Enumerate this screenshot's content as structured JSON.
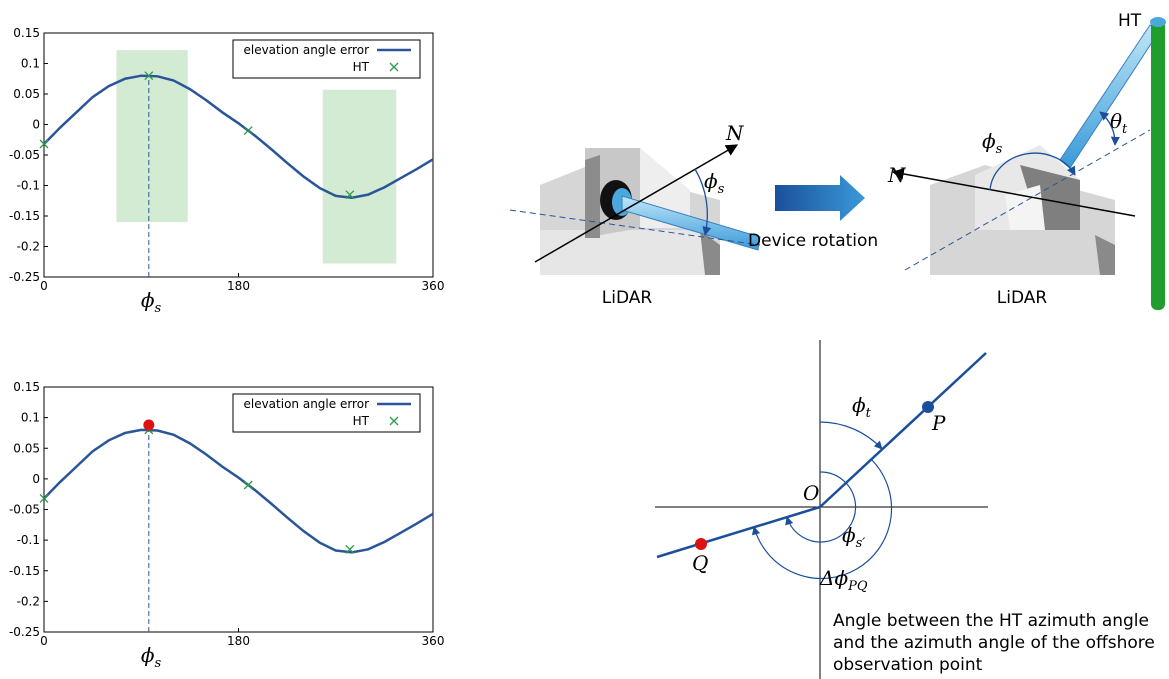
{
  "chart_data": [
    {
      "type": "line",
      "xlim": [
        0,
        360
      ],
      "ylim": [
        -0.25,
        0.15
      ],
      "xticks": [
        0,
        180,
        360
      ],
      "yticks": [
        0.15,
        0.1,
        0.05,
        0,
        -0.05,
        -0.1,
        -0.15,
        -0.2,
        -0.25
      ],
      "series": [
        {
          "name": "elevation angle error",
          "color": "#2a5599",
          "x": [
            0,
            15,
            30,
            45,
            60,
            75,
            90,
            105,
            120,
            135,
            150,
            165,
            180,
            195,
            210,
            225,
            240,
            255,
            270,
            285,
            300,
            315,
            330,
            345,
            360
          ],
          "values": [
            -0.032,
            -0.005,
            0.02,
            0.045,
            0.063,
            0.075,
            0.08,
            0.079,
            0.072,
            0.058,
            0.04,
            0.02,
            0.002,
            -0.018,
            -0.04,
            -0.063,
            -0.085,
            -0.104,
            -0.117,
            -0.12,
            -0.115,
            -0.103,
            -0.088,
            -0.073,
            -0.057
          ]
        },
        {
          "name": "HT",
          "color": "#2a9a4a",
          "x": [
            0,
            97,
            189,
            283
          ],
          "values": [
            -0.032,
            0.08,
            -0.01,
            -0.115
          ]
        }
      ],
      "shaded_regions": [
        {
          "x": [
            67,
            133
          ],
          "y": [
            -0.16,
            0.122
          ]
        },
        {
          "x": [
            258,
            326
          ],
          "y": [
            -0.228,
            0.057
          ]
        }
      ],
      "annotation": {
        "x": 97,
        "y": 0.08,
        "symbol": "ϕ",
        "subscript": "s"
      }
    },
    {
      "type": "line",
      "xlim": [
        0,
        360
      ],
      "ylim": [
        -0.25,
        0.15
      ],
      "xticks": [
        0,
        180,
        360
      ],
      "yticks": [
        0.15,
        0.1,
        0.05,
        0,
        -0.05,
        -0.1,
        -0.15,
        -0.2,
        -0.25
      ],
      "series": [
        {
          "name": "elevation angle error",
          "color": "#2a5599",
          "x": [
            0,
            15,
            30,
            45,
            60,
            75,
            90,
            105,
            120,
            135,
            150,
            165,
            180,
            195,
            210,
            225,
            240,
            255,
            270,
            285,
            300,
            315,
            330,
            345,
            360
          ],
          "values": [
            -0.032,
            -0.005,
            0.02,
            0.045,
            0.063,
            0.075,
            0.08,
            0.079,
            0.072,
            0.058,
            0.04,
            0.02,
            0.002,
            -0.018,
            -0.04,
            -0.063,
            -0.085,
            -0.104,
            -0.117,
            -0.12,
            -0.115,
            -0.103,
            -0.088,
            -0.073,
            -0.057
          ]
        },
        {
          "name": "HT",
          "color": "#2a9a4a",
          "x": [
            0,
            97,
            189,
            283
          ],
          "values": [
            -0.032,
            0.08,
            -0.01,
            -0.115
          ]
        }
      ],
      "highlight": {
        "x": 97,
        "y": 0.088,
        "color": "#e01010"
      },
      "annotation": {
        "x": 97,
        "y": 0.08,
        "symbol": "ϕ",
        "subscript": "s"
      }
    }
  ],
  "rotation_diagram": {
    "left": {
      "north": "N",
      "angle": {
        "symbol": "ϕ",
        "subscript": "s"
      },
      "caption": "LiDAR"
    },
    "arrow_label": "Device rotation",
    "right": {
      "target": "HT",
      "north": "N",
      "elevation": {
        "symbol": "θ",
        "subscript": "t"
      },
      "angle": {
        "symbol": "ϕ",
        "subscript": "s"
      },
      "caption": "LiDAR"
    }
  },
  "angle_diagram": {
    "phi_t": {
      "symbol": "ϕ",
      "subscript": "t"
    },
    "P": "P",
    "O": "O",
    "phi_s": {
      "symbol": "ϕ",
      "subscript": "s′"
    },
    "delta": {
      "symbol": "Δϕ",
      "subscript": "PQ"
    },
    "Q": "Q",
    "caption": [
      "Angle between the HT azimuth angle",
      "and the azimuth angle of the offshore",
      "observation point"
    ]
  }
}
